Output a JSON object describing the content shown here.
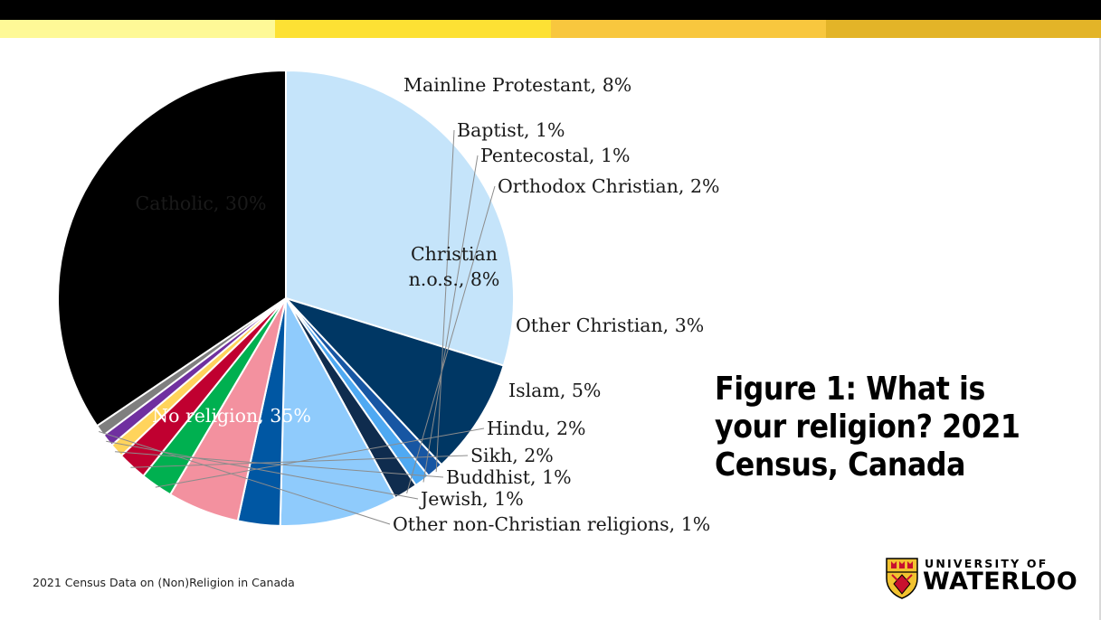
{
  "theme": {
    "stripe_colors": [
      "#fef997",
      "#fde134",
      "#f8c73e",
      "#e3b428"
    ],
    "top_bar": "#000000"
  },
  "title": "Figure 1: What is your religion? 2021 Census, Canada",
  "footer": "2021 Census Data on (Non)Religion in Canada",
  "logo": {
    "line1": "UNIVERSITY OF",
    "line2": "WATERLOO",
    "crest_icon": "waterloo-crest-icon"
  },
  "chart_data": {
    "type": "pie",
    "title": "Figure 1: What is your religion? 2021 Census, Canada",
    "start_angle_deg": 270,
    "direction": "clockwise",
    "slices": [
      {
        "label": "Catholic, 30%",
        "value": 29.9,
        "color": "#c5e4fa"
      },
      {
        "label": "Mainline Protestant, 8%",
        "value": 8.3,
        "color": "#003764"
      },
      {
        "label": "Baptist, 1%",
        "value": 1.2,
        "color": "#1756a3"
      },
      {
        "label": "Pentecostal, 1%",
        "value": 1.1,
        "color": "#4fa9f2"
      },
      {
        "label": "Orthodox Christian, 2%",
        "value": 1.7,
        "color": "#0f2c4e"
      },
      {
        "label": "Christian n.o.s., 8%",
        "value": 8.4,
        "color": "#8fcbfc"
      },
      {
        "label": "Other Christian, 3%",
        "value": 3.0,
        "color": "#0057a3"
      },
      {
        "label": "Islam, 5%",
        "value": 5.1,
        "color": "#f3919f"
      },
      {
        "label": "Hindu, 2%",
        "value": 2.3,
        "color": "#00b050"
      },
      {
        "label": "Sikh, 2%",
        "value": 2.1,
        "color": "#c00030"
      },
      {
        "label": "Buddhist, 1%",
        "value": 1.0,
        "color": "#ffd45c"
      },
      {
        "label": "Jewish, 1%",
        "value": 0.9,
        "color": "#7030a0"
      },
      {
        "label": "Other non-Christian religions, 1%",
        "value": 0.8,
        "color": "#7f7f7f"
      },
      {
        "label": "No religion, 35%",
        "value": 34.6,
        "color": "#000000"
      }
    ]
  }
}
